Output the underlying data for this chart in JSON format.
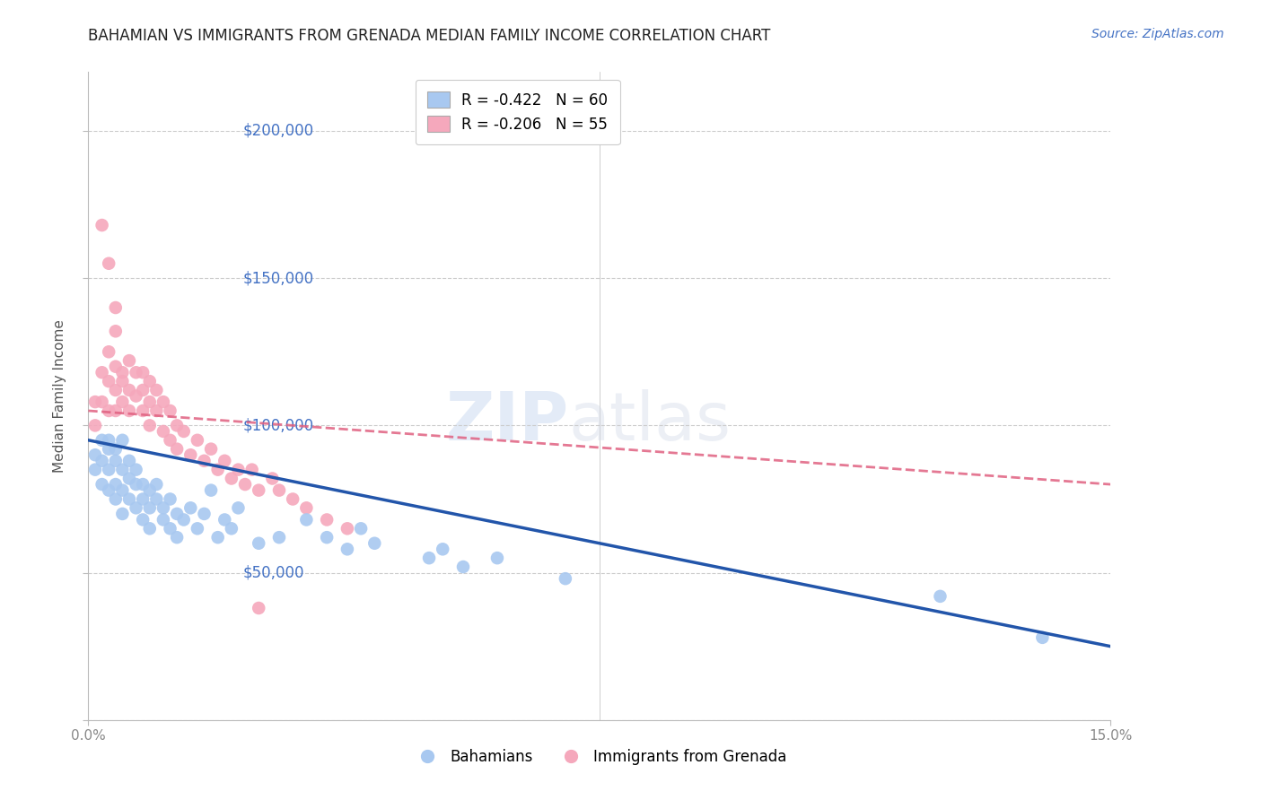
{
  "title": "BAHAMIAN VS IMMIGRANTS FROM GRENADA MEDIAN FAMILY INCOME CORRELATION CHART",
  "source_text": "Source: ZipAtlas.com",
  "ylabel": "Median Family Income",
  "watermark_zip": "ZIP",
  "watermark_atlas": "atlas",
  "xlim": [
    0.0,
    0.15
  ],
  "ylim": [
    0,
    220000
  ],
  "yticks": [
    0,
    50000,
    100000,
    150000,
    200000
  ],
  "ytick_labels": [
    "",
    "$50,000",
    "$100,000",
    "$150,000",
    "$200,000"
  ],
  "legend_blue_label": "R = -0.422   N = 60",
  "legend_pink_label": "R = -0.206   N = 55",
  "legend_blue_series": "Bahamians",
  "legend_pink_series": "Immigrants from Grenada",
  "blue_color": "#A8C8F0",
  "pink_color": "#F5A8BC",
  "blue_line_color": "#2255AA",
  "pink_line_color": "#E06080",
  "background_color": "#FFFFFF",
  "grid_color": "#CCCCCC",
  "axis_color": "#BBBBBB",
  "right_label_color": "#4472C4",
  "title_color": "#222222",
  "blue_x": [
    0.001,
    0.001,
    0.002,
    0.002,
    0.002,
    0.003,
    0.003,
    0.003,
    0.003,
    0.004,
    0.004,
    0.004,
    0.004,
    0.005,
    0.005,
    0.005,
    0.005,
    0.006,
    0.006,
    0.006,
    0.007,
    0.007,
    0.007,
    0.008,
    0.008,
    0.008,
    0.009,
    0.009,
    0.009,
    0.01,
    0.01,
    0.011,
    0.011,
    0.012,
    0.012,
    0.013,
    0.013,
    0.014,
    0.015,
    0.016,
    0.017,
    0.018,
    0.019,
    0.02,
    0.021,
    0.022,
    0.025,
    0.028,
    0.032,
    0.035,
    0.038,
    0.04,
    0.042,
    0.05,
    0.052,
    0.055,
    0.06,
    0.07,
    0.125,
    0.14
  ],
  "blue_y": [
    90000,
    85000,
    95000,
    80000,
    88000,
    92000,
    85000,
    78000,
    95000,
    88000,
    80000,
    75000,
    92000,
    85000,
    78000,
    95000,
    70000,
    88000,
    82000,
    75000,
    80000,
    72000,
    85000,
    75000,
    68000,
    80000,
    78000,
    72000,
    65000,
    75000,
    80000,
    72000,
    68000,
    75000,
    65000,
    70000,
    62000,
    68000,
    72000,
    65000,
    70000,
    78000,
    62000,
    68000,
    65000,
    72000,
    60000,
    62000,
    68000,
    62000,
    58000,
    65000,
    60000,
    55000,
    58000,
    52000,
    55000,
    48000,
    42000,
    28000
  ],
  "pink_x": [
    0.001,
    0.001,
    0.002,
    0.002,
    0.003,
    0.003,
    0.003,
    0.004,
    0.004,
    0.004,
    0.005,
    0.005,
    0.005,
    0.006,
    0.006,
    0.006,
    0.007,
    0.007,
    0.008,
    0.008,
    0.008,
    0.009,
    0.009,
    0.009,
    0.01,
    0.01,
    0.011,
    0.011,
    0.012,
    0.012,
    0.013,
    0.013,
    0.014,
    0.015,
    0.016,
    0.017,
    0.018,
    0.019,
    0.02,
    0.021,
    0.022,
    0.023,
    0.024,
    0.025,
    0.027,
    0.028,
    0.03,
    0.032,
    0.035,
    0.038,
    0.002,
    0.003,
    0.004,
    0.004,
    0.025
  ],
  "pink_y": [
    108000,
    100000,
    118000,
    108000,
    115000,
    125000,
    105000,
    120000,
    112000,
    105000,
    118000,
    108000,
    115000,
    122000,
    112000,
    105000,
    118000,
    110000,
    112000,
    105000,
    118000,
    108000,
    115000,
    100000,
    112000,
    105000,
    108000,
    98000,
    105000,
    95000,
    100000,
    92000,
    98000,
    90000,
    95000,
    88000,
    92000,
    85000,
    88000,
    82000,
    85000,
    80000,
    85000,
    78000,
    82000,
    78000,
    75000,
    72000,
    68000,
    65000,
    168000,
    155000,
    140000,
    132000,
    38000
  ]
}
